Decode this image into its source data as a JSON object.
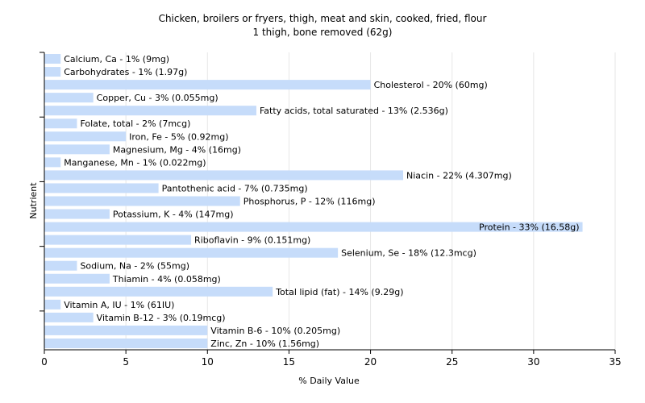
{
  "chart_data": {
    "type": "bar",
    "orientation": "horizontal",
    "title": "Chicken, broilers or fryers, thigh, meat and skin, cooked, fried, flour",
    "subtitle": "1 thigh, bone removed (62g)",
    "xlabel": "% Daily Value",
    "ylabel": "Nutrient",
    "xlim": [
      0,
      35
    ],
    "xticks": [
      0,
      5,
      10,
      15,
      20,
      25,
      30,
      35
    ],
    "grid": true,
    "bar_color": "#c6dcfa",
    "grid_color": "#e6e6e6",
    "categories": [
      "Calcium, Ca",
      "Carbohydrates",
      "Cholesterol",
      "Copper, Cu",
      "Fatty acids, total saturated",
      "Folate, total",
      "Iron, Fe",
      "Magnesium, Mg",
      "Manganese, Mn",
      "Niacin",
      "Pantothenic acid",
      "Phosphorus, P",
      "Potassium, K",
      "Protein",
      "Riboflavin",
      "Selenium, Se",
      "Sodium, Na",
      "Thiamin",
      "Total lipid (fat)",
      "Vitamin A, IU",
      "Vitamin B-12",
      "Vitamin B-6",
      "Zinc, Zn"
    ],
    "values": [
      1,
      1,
      20,
      3,
      13,
      2,
      5,
      4,
      1,
      22,
      7,
      12,
      4,
      33,
      9,
      18,
      2,
      4,
      14,
      1,
      3,
      10,
      10
    ],
    "labels": [
      "Calcium, Ca - 1% (9mg)",
      "Carbohydrates - 1% (1.97g)",
      "Cholesterol - 20% (60mg)",
      "Copper, Cu - 3% (0.055mg)",
      "Fatty acids, total saturated - 13% (2.536g)",
      "Folate, total - 2% (7mcg)",
      "Iron, Fe - 5% (0.92mg)",
      "Magnesium, Mg - 4% (16mg)",
      "Manganese, Mn - 1% (0.022mg)",
      "Niacin - 22% (4.307mg)",
      "Pantothenic acid - 7% (0.735mg)",
      "Phosphorus, P - 12% (116mg)",
      "Potassium, K - 4% (147mg)",
      "Protein - 33% (16.58g)",
      "Riboflavin - 9% (0.151mg)",
      "Selenium, Se - 18% (12.3mcg)",
      "Sodium, Na - 2% (55mg)",
      "Thiamin - 4% (0.058mg)",
      "Total lipid (fat) - 14% (9.29g)",
      "Vitamin A, IU - 1% (61IU)",
      "Vitamin B-12 - 3% (0.19mcg)",
      "Vitamin B-6 - 10% (0.205mg)",
      "Zinc, Zn - 10% (1.56mg)"
    ]
  }
}
